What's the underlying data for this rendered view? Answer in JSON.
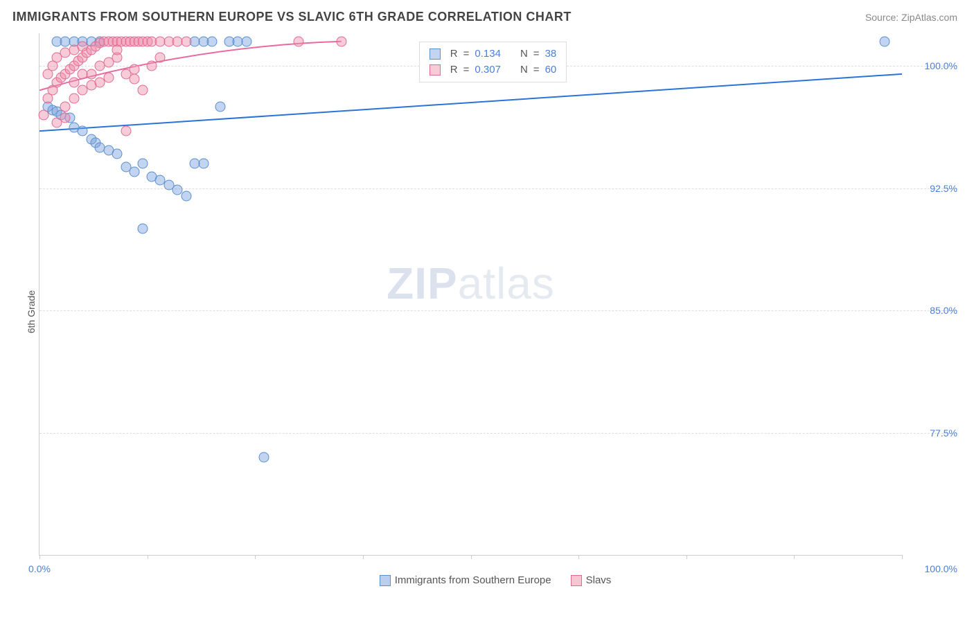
{
  "title": "IMMIGRANTS FROM SOUTHERN EUROPE VS SLAVIC 6TH GRADE CORRELATION CHART",
  "source": "Source: ZipAtlas.com",
  "ylabel": "6th Grade",
  "watermark_a": "ZIP",
  "watermark_b": "atlas",
  "chart": {
    "type": "scatter",
    "x_min_label": "0.0%",
    "x_max_label": "100.0%",
    "x_domain": [
      0,
      100
    ],
    "y_domain": [
      70,
      102
    ],
    "y_ticks": [
      {
        "v": 100.0,
        "label": "100.0%"
      },
      {
        "v": 92.5,
        "label": "92.5%"
      },
      {
        "v": 85.0,
        "label": "85.0%"
      },
      {
        "v": 77.5,
        "label": "77.5%"
      }
    ],
    "x_tick_positions": [
      0,
      12.5,
      25,
      37.5,
      50,
      62.5,
      75,
      87.5,
      100
    ],
    "grid_color": "#dddddd",
    "background_color": "#ffffff",
    "axis_color": "#cccccc",
    "label_color": "#4a7fd8",
    "title_color": "#444444",
    "title_fontsize": 18,
    "label_fontsize": 14,
    "marker_radius": 7.5,
    "series": [
      {
        "name": "Immigrants from Southern Europe",
        "key": "blue",
        "fill": "rgba(120,160,220,0.45)",
        "stroke": "#5a8fd0",
        "R": "0.134",
        "N": "38",
        "trend": {
          "x1": 0,
          "y1": 96.0,
          "x2": 100,
          "y2": 99.5,
          "stroke": "#2b73d6",
          "width": 2
        },
        "points": [
          [
            1,
            97.5
          ],
          [
            1.5,
            97.3
          ],
          [
            2,
            97.2
          ],
          [
            2.5,
            97.0
          ],
          [
            2,
            101.5
          ],
          [
            3,
            101.5
          ],
          [
            4,
            101.5
          ],
          [
            5,
            101.5
          ],
          [
            6,
            101.5
          ],
          [
            7,
            101.5
          ],
          [
            3.5,
            96.8
          ],
          [
            4,
            96.2
          ],
          [
            5,
            96.0
          ],
          [
            6,
            95.5
          ],
          [
            6.5,
            95.3
          ],
          [
            7,
            95.0
          ],
          [
            8,
            94.8
          ],
          [
            9,
            94.6
          ],
          [
            10,
            93.8
          ],
          [
            11,
            93.5
          ],
          [
            12,
            94.0
          ],
          [
            13,
            93.2
          ],
          [
            14,
            93.0
          ],
          [
            15,
            92.7
          ],
          [
            16,
            92.4
          ],
          [
            17,
            92.0
          ],
          [
            18,
            101.5
          ],
          [
            19,
            101.5
          ],
          [
            20,
            101.5
          ],
          [
            21,
            97.5
          ],
          [
            22,
            101.5
          ],
          [
            23,
            101.5
          ],
          [
            24,
            101.5
          ],
          [
            12,
            90.0
          ],
          [
            98,
            101.5
          ],
          [
            26,
            76.0
          ],
          [
            18,
            94.0
          ],
          [
            19,
            94.0
          ]
        ]
      },
      {
        "name": "Slavs",
        "key": "pink",
        "fill": "rgba(240,140,170,0.45)",
        "stroke": "#e06a90",
        "R": "0.307",
        "N": "60",
        "trend": {
          "x1": 0,
          "y1": 98.5,
          "x2": 35,
          "y2": 101.5,
          "stroke": "#e86aa0",
          "width": 2,
          "curve": true
        },
        "points": [
          [
            0.5,
            97.0
          ],
          [
            1,
            98.0
          ],
          [
            1.5,
            98.5
          ],
          [
            2,
            99.0
          ],
          [
            2.5,
            99.3
          ],
          [
            3,
            99.5
          ],
          [
            3.5,
            99.8
          ],
          [
            4,
            100.0
          ],
          [
            4.5,
            100.3
          ],
          [
            5,
            100.5
          ],
          [
            5.5,
            100.8
          ],
          [
            6,
            101.0
          ],
          [
            6.5,
            101.2
          ],
          [
            7,
            101.4
          ],
          [
            7.5,
            101.5
          ],
          [
            8,
            101.5
          ],
          [
            8.5,
            101.5
          ],
          [
            9,
            101.5
          ],
          [
            9.5,
            101.5
          ],
          [
            10,
            101.5
          ],
          [
            10.5,
            101.5
          ],
          [
            11,
            101.5
          ],
          [
            11.5,
            101.5
          ],
          [
            12,
            101.5
          ],
          [
            12.5,
            101.5
          ],
          [
            13,
            101.5
          ],
          [
            14,
            101.5
          ],
          [
            15,
            101.5
          ],
          [
            16,
            101.5
          ],
          [
            17,
            101.5
          ],
          [
            30,
            101.5
          ],
          [
            35,
            101.5
          ],
          [
            2,
            100.5
          ],
          [
            3,
            100.8
          ],
          [
            4,
            101.0
          ],
          [
            5,
            101.2
          ],
          [
            1,
            99.5
          ],
          [
            1.5,
            100.0
          ],
          [
            5,
            98.5
          ],
          [
            6,
            98.8
          ],
          [
            7,
            99.0
          ],
          [
            8,
            99.3
          ],
          [
            10,
            99.5
          ],
          [
            11,
            99.2
          ],
          [
            12,
            98.5
          ],
          [
            3,
            97.5
          ],
          [
            4,
            98.0
          ],
          [
            6,
            99.5
          ],
          [
            8,
            100.2
          ],
          [
            9,
            100.5
          ],
          [
            2,
            96.5
          ],
          [
            3,
            96.8
          ],
          [
            4,
            99.0
          ],
          [
            5,
            99.5
          ],
          [
            7,
            100.0
          ],
          [
            9,
            101.0
          ],
          [
            13,
            100.0
          ],
          [
            10,
            96.0
          ],
          [
            11,
            99.8
          ],
          [
            14,
            100.5
          ]
        ]
      }
    ]
  },
  "legend_top": {
    "r_label": "R",
    "n_label": "N",
    "eq": "="
  },
  "legend_bottom": {
    "items": [
      {
        "label": "Immigrants from Southern Europe",
        "fill": "rgba(120,160,220,0.5)",
        "stroke": "#5a8fd0"
      },
      {
        "label": "Slavs",
        "fill": "rgba(240,140,170,0.5)",
        "stroke": "#e06a90"
      }
    ]
  }
}
